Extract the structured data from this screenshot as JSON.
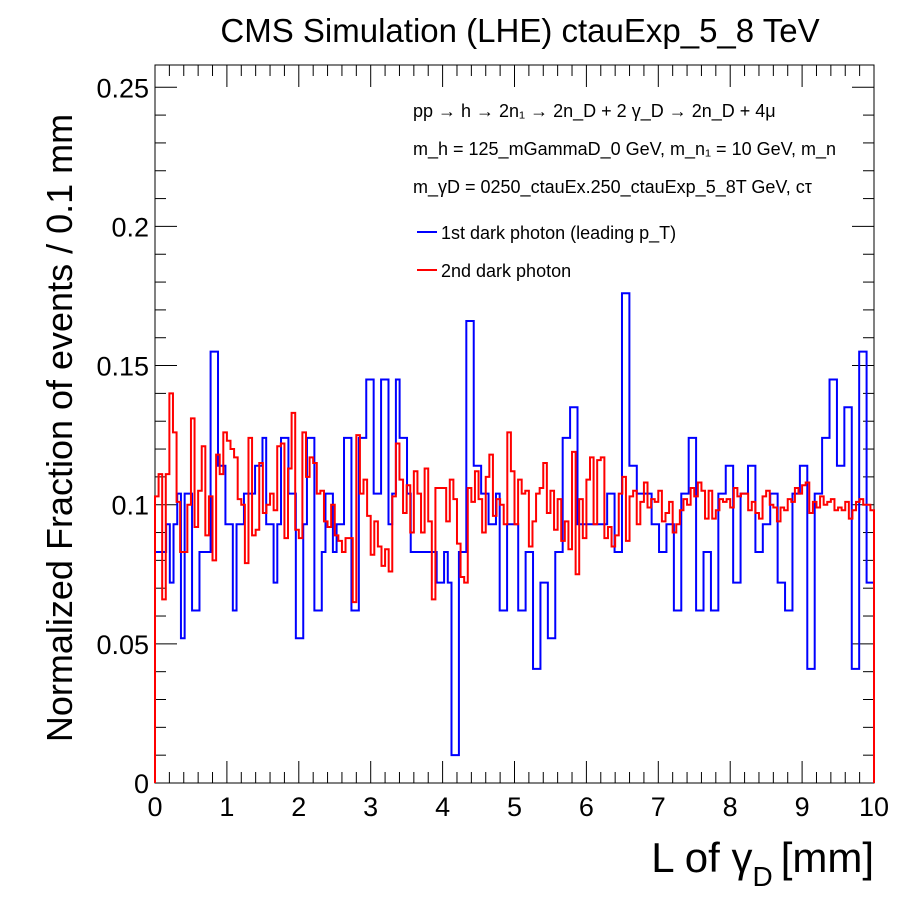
{
  "chart_data": {
    "type": "histogram",
    "title": "CMS Simulation (LHE) ctauExp_5_8 TeV",
    "xlabel": {
      "main": "L of γ",
      "sub": "D",
      "unit": "[mm]"
    },
    "ylabel": "Normalized Fraction of events / 0.1 mm",
    "xlim": [
      0,
      10
    ],
    "ylim": [
      0,
      0.258
    ],
    "bin_width": 0.1,
    "x_ticks": [
      "0",
      "1",
      "2",
      "3",
      "4",
      "5",
      "6",
      "7",
      "8",
      "9",
      "10"
    ],
    "y_ticks": [
      "0",
      "0.05",
      "0.1",
      "0.15",
      "0.2",
      "0.25"
    ],
    "grid": false,
    "legend_position": "top-right",
    "annotations": {
      "process": "pp → h → 2n₁ → 2n_D + 2 γ_D → 2n_D + 4μ",
      "masses_1": "m_h = 125_mGammaD_0 GeV, m_n₁ = 10 GeV, m_n",
      "masses_2": "m_γD = 0250_ctauEx.250_ctauExp_5_8T GeV, cτ"
    },
    "series": [
      {
        "name": "1st dark photon (leading p_T)",
        "color": "#0000ff",
        "values": [
          0.083,
          0.083,
          0.083,
          0.093,
          0.072,
          0.093,
          0.104,
          0.052,
          0.104,
          0.104,
          0.062,
          0.062,
          0.083,
          0.083,
          0.083,
          0.155,
          0.155,
          0.114,
          0.114,
          0.093,
          0.093,
          0.062,
          0.093,
          0.093,
          0.104,
          0.104,
          0.104,
          0.114,
          0.114,
          0.124,
          0.093,
          0.093,
          0.072,
          0.093,
          0.124,
          0.124,
          0.104,
          0.104,
          0.052,
          0.052,
          0.093,
          0.124,
          0.124,
          0.062,
          0.062,
          0.083,
          0.104,
          0.104,
          0.083,
          0.093,
          0.093,
          0.124,
          0.124,
          0.062,
          0.062,
          0.124,
          0.124,
          0.145,
          0.145,
          0.104,
          0.104,
          0.145,
          0.145,
          0.093,
          0.104,
          0.145,
          0.124,
          0.124,
          0.104,
          0.083,
          0.083,
          0.083,
          0.083,
          0.083,
          0.083,
          0.083,
          0.072,
          0.072,
          0.083,
          0.072,
          0.01,
          0.01,
          0.083,
          0.083,
          0.166,
          0.166,
          0.114,
          0.114,
          0.104,
          0.104,
          0.093,
          0.093,
          0.104,
          0.062,
          0.062,
          0.093,
          0.093,
          0.093,
          0.062,
          0.062,
          0.083,
          0.083,
          0.041,
          0.041,
          0.072,
          0.072,
          0.052,
          0.052,
          0.083,
          0.083,
          0.124,
          0.124,
          0.135,
          0.135,
          0.093,
          0.093,
          0.093,
          0.093,
          0.093,
          0.093,
          0.093,
          0.093,
          0.104,
          0.104,
          0.083,
          0.083,
          0.176,
          0.176,
          0.114,
          0.114,
          0.104,
          0.104,
          0.104,
          0.104,
          0.093,
          0.093,
          0.083,
          0.083,
          0.093,
          0.093,
          0.062,
          0.062,
          0.104,
          0.104,
          0.124,
          0.124,
          0.062,
          0.062,
          0.083,
          0.083,
          0.062,
          0.062,
          0.104,
          0.104,
          0.114,
          0.114,
          0.072,
          0.072,
          0.104,
          0.104,
          0.114,
          0.114,
          0.083,
          0.083,
          0.093,
          0.093,
          0.104,
          0.104,
          0.072,
          0.072,
          0.062,
          0.062,
          0.104,
          0.104,
          0.114,
          0.114,
          0.041,
          0.041,
          0.104,
          0.104,
          0.124,
          0.124,
          0.145,
          0.145,
          0.114,
          0.114,
          0.135,
          0.135,
          0.041,
          0.041,
          0.155,
          0.155,
          0.072,
          0.072
        ]
      },
      {
        "name": "2nd dark photon",
        "color": "#ff0000",
        "values": [
          0.103,
          0.111,
          0.066,
          0.111,
          0.14,
          0.126,
          0.101,
          0.083,
          0.083,
          0.1,
          0.131,
          0.092,
          0.105,
          0.121,
          0.089,
          0.103,
          0.08,
          0.118,
          0.111,
          0.126,
          0.123,
          0.12,
          0.117,
          0.102,
          0.1,
          0.079,
          0.124,
          0.089,
          0.091,
          0.115,
          0.097,
          0.1,
          0.104,
          0.098,
          0.121,
          0.122,
          0.088,
          0.113,
          0.133,
          0.091,
          0.088,
          0.126,
          0.11,
          0.117,
          0.115,
          0.104,
          0.105,
          0.094,
          0.092,
          0.1,
          0.089,
          0.087,
          0.083,
          0.088,
          0.088,
          0.065,
          0.125,
          0.104,
          0.109,
          0.096,
          0.082,
          0.094,
          0.085,
          0.078,
          0.084,
          0.076,
          0.103,
          0.122,
          0.109,
          0.097,
          0.107,
          0.09,
          0.112,
          0.104,
          0.09,
          0.113,
          0.094,
          0.066,
          0.106,
          0.106,
          0.106,
          0.094,
          0.109,
          0.102,
          0.086,
          0.074,
          0.072,
          0.106,
          0.101,
          0.112,
          0.102,
          0.09,
          0.11,
          0.118,
          0.096,
          0.102,
          0.1,
          0.093,
          0.126,
          0.112,
          0.093,
          0.109,
          0.104,
          0.105,
          0.085,
          0.094,
          0.104,
          0.106,
          0.115,
          0.097,
          0.105,
          0.091,
          0.102,
          0.087,
          0.094,
          0.084,
          0.119,
          0.075,
          0.102,
          0.088,
          0.109,
          0.117,
          0.093,
          0.116,
          0.117,
          0.088,
          0.092,
          0.085,
          0.089,
          0.104,
          0.11,
          0.087,
          0.103,
          0.105,
          0.093,
          0.101,
          0.108,
          0.099,
          0.102,
          0.101,
          0.105,
          0.094,
          0.097,
          0.101,
          0.09,
          0.093,
          0.098,
          0.102,
          0.1,
          0.106,
          0.103,
          0.108,
          0.105,
          0.095,
          0.105,
          0.095,
          0.098,
          0.102,
          0.101,
          0.102,
          0.099,
          0.106,
          0.103,
          0.104,
          0.104,
          0.098,
          0.101,
          0.097,
          0.095,
          0.103,
          0.105,
          0.1,
          0.099,
          0.094,
          0.099,
          0.098,
          0.102,
          0.101,
          0.106,
          0.104,
          0.107,
          0.108,
          0.097,
          0.101,
          0.099,
          0.103,
          0.1,
          0.101,
          0.102,
          0.098,
          0.099,
          0.098,
          0.101,
          0.095,
          0.098,
          0.101,
          0.102,
          0.1,
          0.1,
          0.098
        ]
      }
    ]
  }
}
